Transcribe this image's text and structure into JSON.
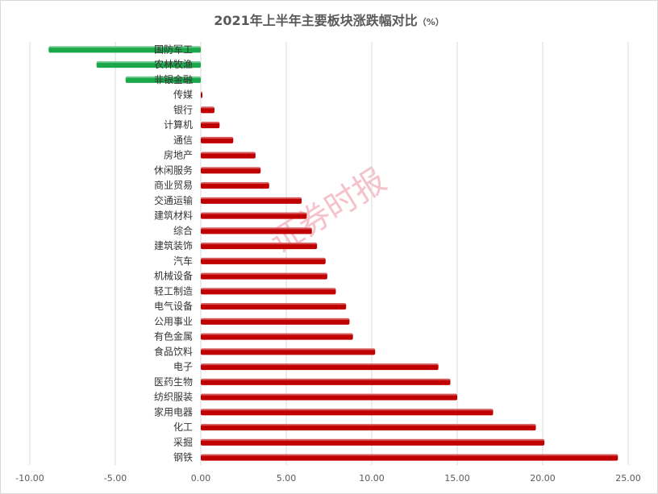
{
  "title": "2021年上半年主要板块涨跌幅对比",
  "title_unit": "（%）",
  "watermark": "证券时报",
  "colors": {
    "positive": "#c00000",
    "negative": "#1aa84a",
    "grid": "#d9d9d9"
  },
  "chart_data": {
    "type": "bar",
    "orientation": "horizontal",
    "title": "2021年上半年主要板块涨跌幅对比（%）",
    "xlim": [
      -10,
      25
    ],
    "x_ticks": [
      "-10.00",
      "-5.00",
      "0.00",
      "5.00",
      "10.00",
      "15.00",
      "20.00",
      "25.00"
    ],
    "grid": true,
    "legend": "none",
    "categories": [
      "国防军工",
      "农林牧渔",
      "非银金融",
      "传媒",
      "银行",
      "计算机",
      "通信",
      "房地产",
      "休闲服务",
      "商业贸易",
      "交通运输",
      "建筑材料",
      "综合",
      "建筑装饰",
      "汽车",
      "机械设备",
      "轻工制造",
      "电气设备",
      "公用事业",
      "有色金属",
      "食品饮料",
      "电子",
      "医药生物",
      "纺织服装",
      "家用电器",
      "化工",
      "采掘",
      "钢铁"
    ],
    "values": [
      -8.9,
      -6.1,
      -4.4,
      0.05,
      0.8,
      1.1,
      1.9,
      3.2,
      3.5,
      4.0,
      5.9,
      6.2,
      6.5,
      6.8,
      7.3,
      7.4,
      7.9,
      8.5,
      8.7,
      8.9,
      10.2,
      13.9,
      14.6,
      15.0,
      17.1,
      19.6,
      20.1,
      24.4
    ]
  }
}
